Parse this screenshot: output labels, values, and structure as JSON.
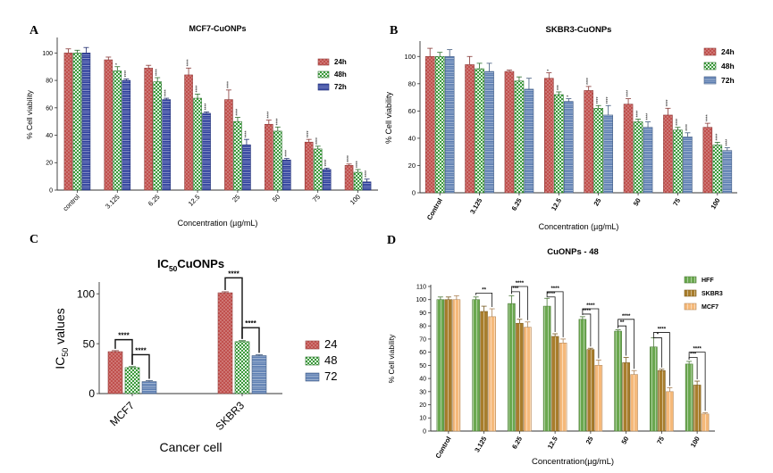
{
  "panels": [
    {
      "letter": "A",
      "chart_data": {
        "type": "bar",
        "title": "MCF7-CuONPs",
        "xlabel": "Concentration (µg/mL)",
        "ylabel": "% Cell viability",
        "ylim": [
          0,
          110
        ],
        "yticks": [
          0,
          20,
          40,
          60,
          80,
          100
        ],
        "categories": [
          "control",
          "3.125",
          "6.25",
          "12.5",
          "25",
          "50",
          "75",
          "100"
        ],
        "grid": false,
        "legend_position": "right",
        "series": [
          {
            "name": "24h",
            "color": "#c0504d",
            "pattern": "dots",
            "values": [
              100,
              95,
              89,
              84,
              66,
              48,
              35,
              18
            ],
            "errors": [
              3,
              2,
              2,
              5,
              7,
              3,
              2,
              1
            ],
            "sig": [
              "",
              "",
              "",
              "****",
              "****",
              "****",
              "****",
              "****"
            ]
          },
          {
            "name": "48h",
            "color": "#3a9a3a",
            "pattern": "check",
            "values": [
              100,
              87,
              79,
              67,
              50,
              43,
              30,
              13
            ],
            "errors": [
              2,
              3,
              3,
              3,
              3,
              3,
              2,
              2
            ],
            "sig": [
              "",
              "*",
              "****",
              "****",
              "****",
              "****",
              "****",
              "****"
            ]
          },
          {
            "name": "72h",
            "color": "#2c3e9c",
            "pattern": "lines",
            "values": [
              100,
              80,
              66,
              56,
              33,
              22,
              15,
              6
            ],
            "errors": [
              4,
              1,
              1,
              1,
              4,
              1,
              1,
              2
            ],
            "sig": [
              "",
              "****",
              "****",
              "****",
              "****",
              "****",
              "****",
              "****"
            ]
          }
        ]
      }
    },
    {
      "letter": "B",
      "chart_data": {
        "type": "bar",
        "title": "SKBR3-CuONPs",
        "xlabel": "Concentration (µg/mL)",
        "ylabel": "% Cell viability",
        "ylim": [
          0,
          110
        ],
        "yticks": [
          0,
          20,
          40,
          60,
          80,
          100
        ],
        "categories": [
          "Control",
          "3.125",
          "6.25",
          "12.5",
          "25",
          "50",
          "75",
          "100"
        ],
        "grid": false,
        "legend_position": "right",
        "series": [
          {
            "name": "24h",
            "color": "#c0504d",
            "pattern": "dots",
            "values": [
              100,
              94,
              89,
              84,
              75,
              65,
              57,
              48
            ],
            "errors": [
              6,
              6,
              1,
              4,
              3,
              4,
              5,
              3
            ],
            "sig": [
              "",
              "",
              "",
              "*",
              "****",
              "****",
              "****",
              "****"
            ]
          },
          {
            "name": "48h",
            "color": "#3a9a3a",
            "pattern": "check",
            "values": [
              100,
              91,
              82,
              72,
              62,
              52,
              46,
              35
            ],
            "errors": [
              3,
              4,
              3,
              2,
              2,
              2,
              2,
              2
            ],
            "sig": [
              "",
              "",
              "",
              "***",
              "****",
              "****",
              "****",
              "****"
            ]
          },
          {
            "name": "72h",
            "color": "#5b7db1",
            "pattern": "lines",
            "values": [
              100,
              89,
              76,
              67,
              57,
              48,
              41,
              31
            ],
            "errors": [
              5,
              6,
              8,
              2,
              7,
              4,
              3,
              2
            ],
            "sig": [
              "",
              "",
              "",
              "*",
              "****",
              "****",
              "****",
              "****"
            ]
          }
        ]
      }
    },
    {
      "letter": "C",
      "chart_data": {
        "type": "bar",
        "title": "IC50CuONPs",
        "title_main": "IC",
        "title_sub": "50",
        "title_rest": "CuONPs",
        "xlabel": "Cancer cell",
        "ylabel": "IC50 values",
        "ylabel_main": "IC",
        "ylabel_sub": "50",
        "ylabel_rest": " values",
        "ylim": [
          0,
          110
        ],
        "yticks": [
          0,
          50,
          100
        ],
        "categories": [
          "MCF7",
          "SKBR3"
        ],
        "grid": false,
        "legend_position": "right",
        "series": [
          {
            "name": "24",
            "color": "#c0504d",
            "pattern": "dots",
            "values": [
              42,
              101
            ],
            "errors": [
              1,
              1
            ]
          },
          {
            "name": "48",
            "color": "#3a9a3a",
            "pattern": "check",
            "values": [
              26,
              52
            ],
            "errors": [
              1,
              1
            ]
          },
          {
            "name": "72",
            "color": "#5b7db1",
            "pattern": "lines",
            "values": [
              12,
              38
            ],
            "errors": [
              1,
              1
            ]
          }
        ],
        "brackets": [
          {
            "category": 0,
            "from": 0,
            "to": 1,
            "label": "****",
            "at": 54
          },
          {
            "category": 0,
            "from": 1,
            "to": 2,
            "label": "****",
            "at": 39
          },
          {
            "category": 1,
            "from": 0,
            "to": 1,
            "label": "****",
            "at": 116
          },
          {
            "category": 1,
            "from": 1,
            "to": 2,
            "label": "****",
            "at": 66
          }
        ]
      }
    },
    {
      "letter": "D",
      "chart_data": {
        "type": "bar",
        "title": "CuONPs - 48",
        "xlabel": "Concentration(µg/mL)",
        "ylabel": "% Cell viability",
        "ylim": [
          0,
          110
        ],
        "yticks": [
          0,
          10,
          20,
          30,
          40,
          50,
          60,
          70,
          80,
          90,
          100,
          110
        ],
        "categories": [
          "Control",
          "3.125",
          "6.25",
          "12.5",
          "25",
          "50",
          "75",
          "100"
        ],
        "grid": false,
        "legend_position": "top-right",
        "series": [
          {
            "name": "HFF",
            "color": "#6aa84f",
            "pattern": "vlines",
            "values": [
              100,
              100,
              97,
              95,
              85,
              76,
              64,
              51
            ],
            "errors": [
              2,
              2,
              6,
              6,
              2,
              1,
              7,
              2
            ]
          },
          {
            "name": "SKBR3",
            "color": "#a87d2c",
            "pattern": "vlines",
            "values": [
              100,
              91,
              82,
              72,
              62,
              52,
              46,
              35
            ],
            "errors": [
              2,
              4,
              3,
              2,
              1,
              4,
              1,
              3
            ]
          },
          {
            "name": "MCF7",
            "color": "#f5b97a",
            "pattern": "vlines",
            "values": [
              100,
              87,
              79,
              67,
              50,
              43,
              30,
              13
            ],
            "errors": [
              3,
              6,
              4,
              3,
              4,
              3,
              3,
              1
            ]
          }
        ],
        "brackets": [
          {
            "category": 1,
            "from": 0,
            "to": 2,
            "label": "**",
            "at": 105
          },
          {
            "category": 2,
            "from": 0,
            "to": 1,
            "label": "***",
            "at": 106
          },
          {
            "category": 2,
            "from": 0,
            "to": 2,
            "label": "****",
            "at": 110
          },
          {
            "category": 3,
            "from": 0,
            "to": 1,
            "label": "****",
            "at": 102
          },
          {
            "category": 3,
            "from": 0,
            "to": 2,
            "label": "****",
            "at": 106
          },
          {
            "category": 4,
            "from": 0,
            "to": 1,
            "label": "****",
            "at": 89
          },
          {
            "category": 4,
            "from": 0,
            "to": 2,
            "label": "****",
            "at": 93
          },
          {
            "category": 5,
            "from": 0,
            "to": 1,
            "label": "**",
            "at": 80
          },
          {
            "category": 5,
            "from": 0,
            "to": 2,
            "label": "****",
            "at": 85
          },
          {
            "category": 6,
            "from": 0,
            "to": 1,
            "label": "*",
            "at": 71
          },
          {
            "category": 6,
            "from": 0,
            "to": 2,
            "label": "****",
            "at": 75
          },
          {
            "category": 7,
            "from": 0,
            "to": 1,
            "label": "***",
            "at": 56
          },
          {
            "category": 7,
            "from": 0,
            "to": 2,
            "label": "****",
            "at": 60
          }
        ]
      }
    }
  ]
}
